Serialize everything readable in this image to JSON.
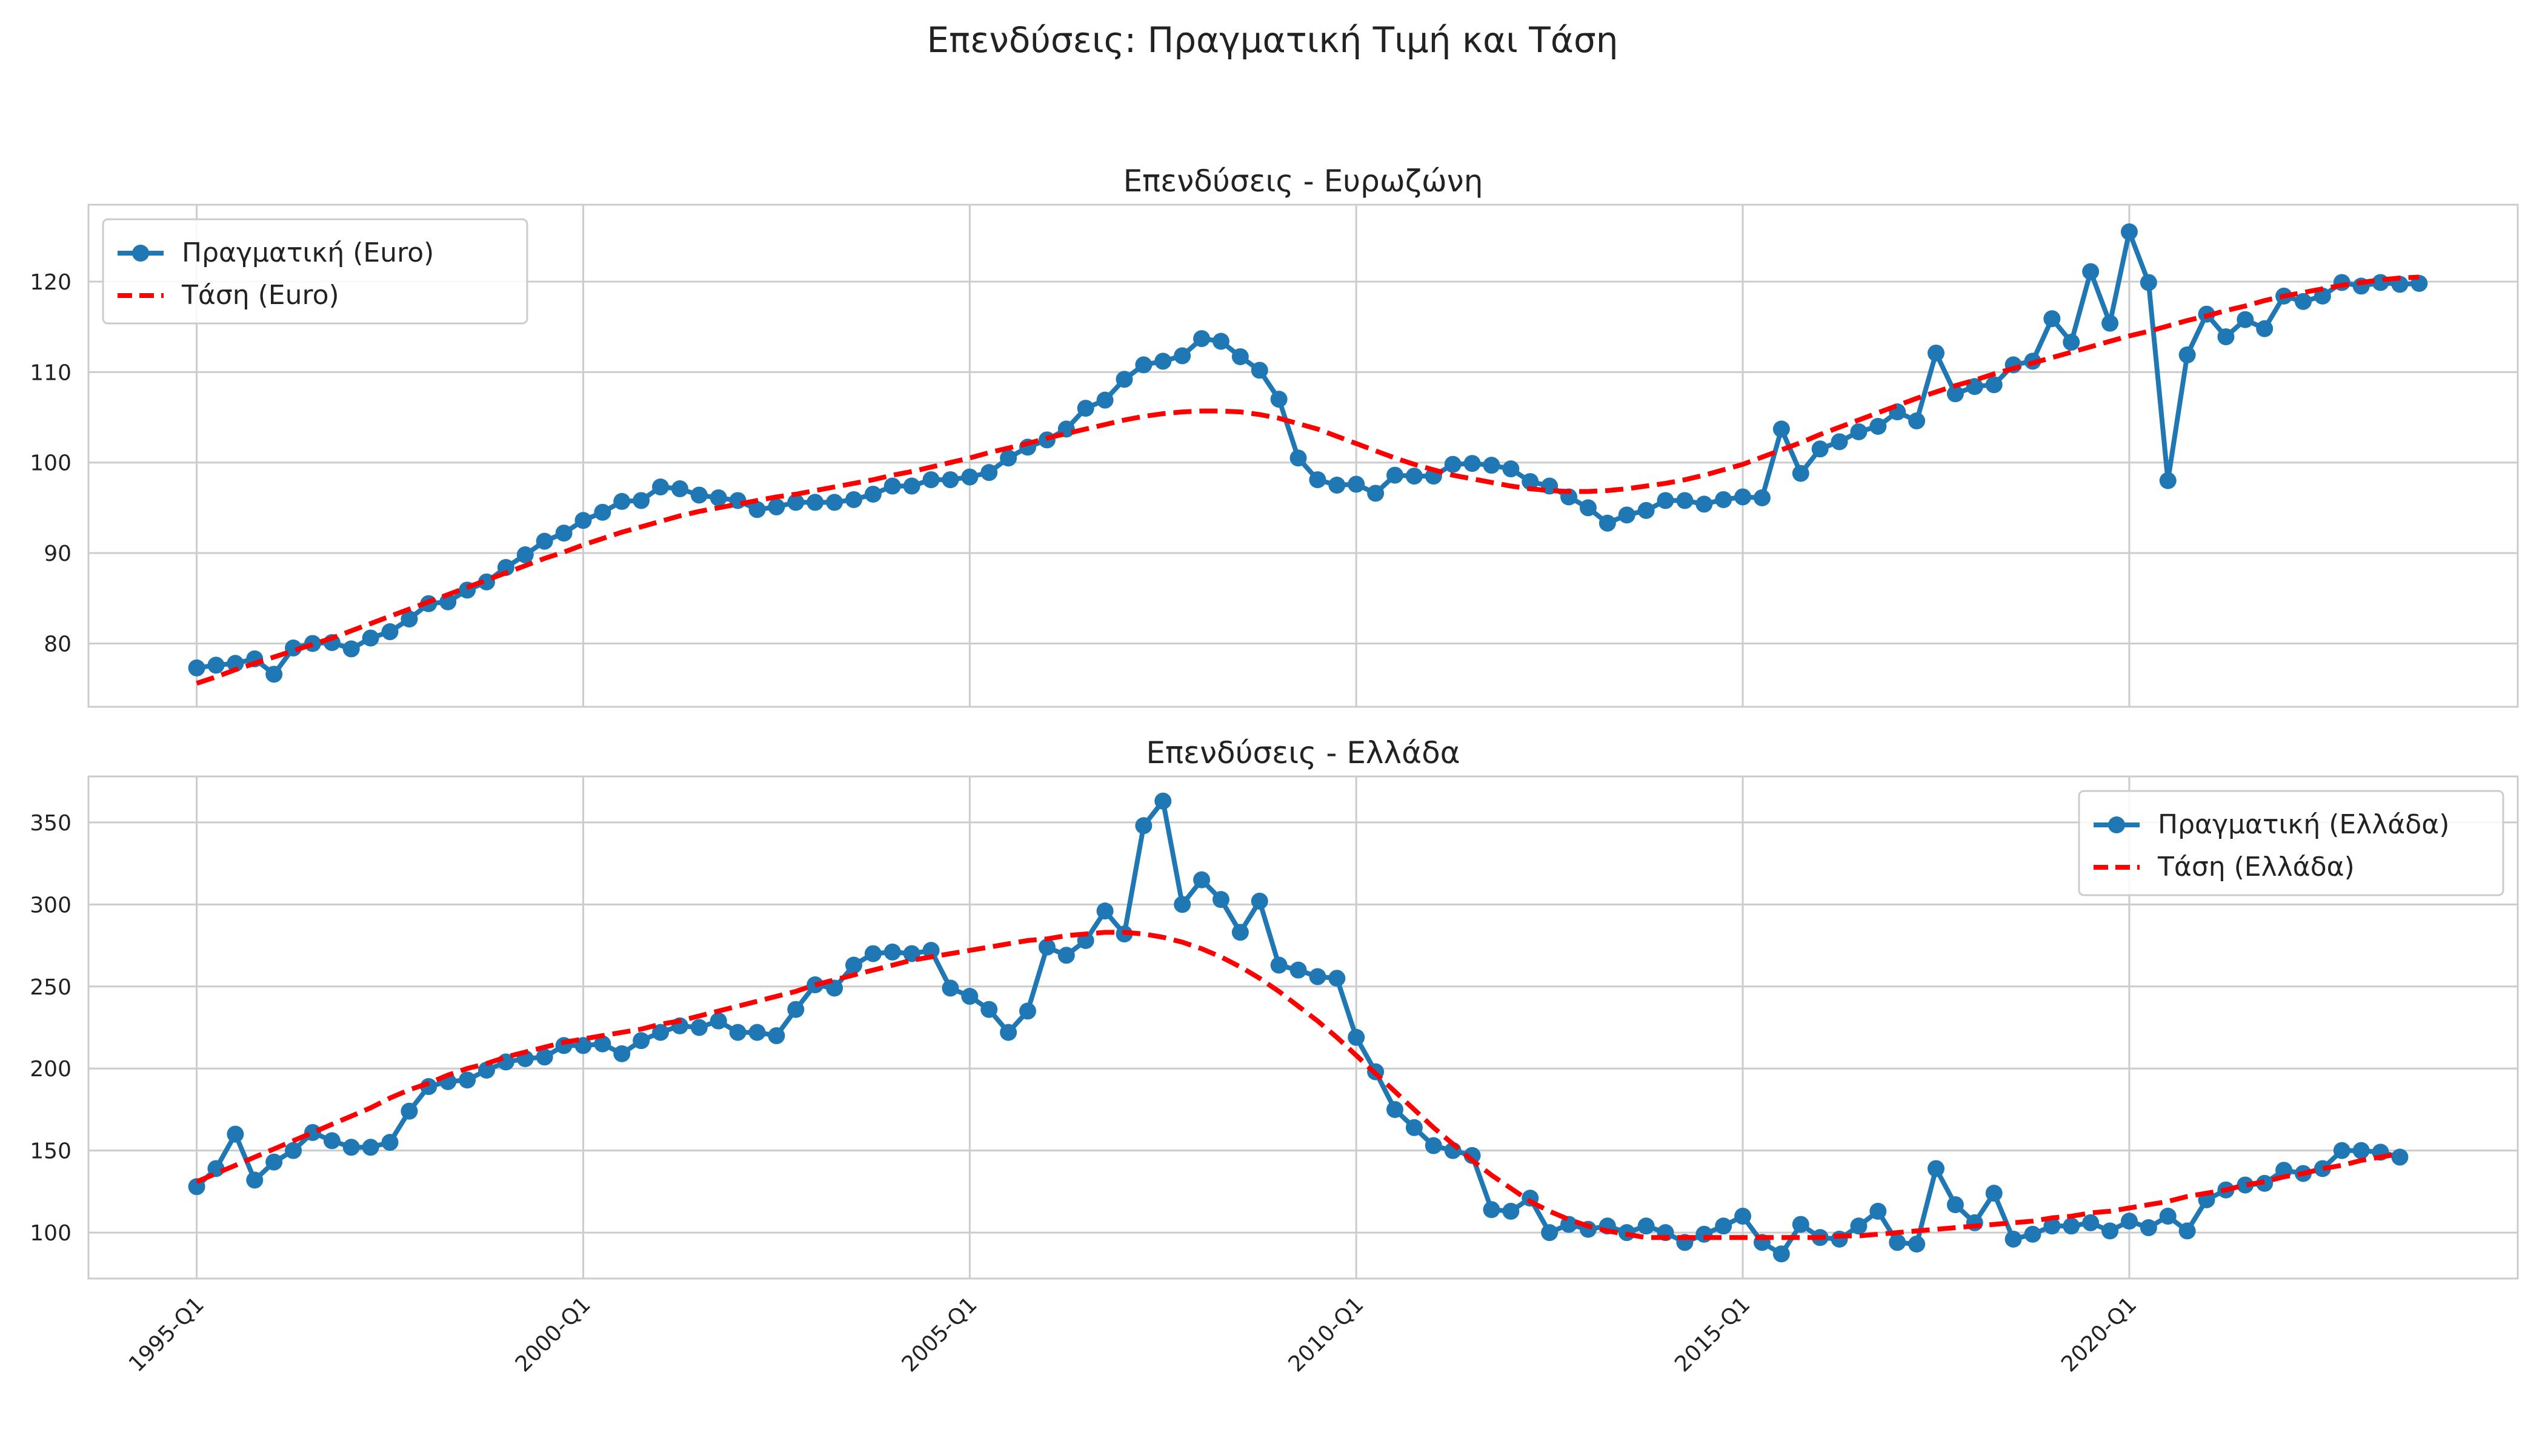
{
  "figure": {
    "title": "Επενδύσεις: Πραγματική Τιμή και Τάση"
  },
  "colors": {
    "actual": "#1f77b4",
    "trend": "#ff0000",
    "grid": "#cccccc",
    "frame": "#cccccc"
  },
  "chart_data": [
    {
      "type": "line",
      "title": "Επενδύσεις - Ευρωζώνη",
      "xlabel": "",
      "ylabel": "",
      "x_range": [
        "1995-Q1",
        "2023-Q3"
      ],
      "xlim_index": [
        -5.6,
        120.1
      ],
      "ylim": [
        73,
        128.5
      ],
      "yticks": [
        80,
        90,
        100,
        110,
        120
      ],
      "xticks": [
        "1995-Q1",
        "2000-Q1",
        "2005-Q1",
        "2010-Q1",
        "2015-Q1",
        "2020-Q1"
      ],
      "grid": true,
      "legend": "top-left",
      "series": [
        {
          "name": "Πραγματική (Euro)",
          "style": "solid-markers",
          "values": [
            77.3,
            77.6,
            77.8,
            78.3,
            76.6,
            79.5,
            80,
            80.1,
            79.4,
            80.6,
            81.3,
            82.7,
            84.4,
            84.6,
            85.9,
            86.8,
            88.4,
            89.8,
            91.3,
            92.2,
            93.6,
            94.5,
            95.7,
            95.8,
            97.3,
            97.1,
            96.4,
            96.1,
            95.8,
            94.8,
            95.1,
            95.6,
            95.6,
            95.6,
            95.9,
            96.5,
            97.4,
            97.4,
            98.1,
            98.1,
            98.4,
            98.9,
            100.5,
            101.7,
            102.5,
            103.7,
            106,
            106.9,
            109.2,
            110.8,
            111.2,
            111.8,
            113.7,
            113.4,
            111.7,
            110.2,
            107,
            100.5,
            98.1,
            97.5,
            97.6,
            96.6,
            98.6,
            98.5,
            98.5,
            99.8,
            99.9,
            99.7,
            99.3,
            97.9,
            97.4,
            96.2,
            95,
            93.3,
            94.2,
            94.7,
            95.8,
            95.8,
            95.4,
            95.9,
            96.2,
            96.1,
            103.7,
            98.8,
            101.5,
            102.3,
            103.4,
            104,
            105.6,
            104.6,
            112.1,
            107.6,
            108.4,
            108.6,
            110.8,
            111.2,
            115.9,
            113.3,
            121.1,
            115.4,
            125.5,
            119.9,
            98,
            111.9,
            116.4,
            113.9,
            115.8,
            114.8,
            118.4,
            117.8,
            118.4,
            119.9,
            119.5,
            119.9,
            119.7,
            119.8
          ]
        },
        {
          "name": "Τάση (Euro)",
          "style": "dashed",
          "values": [
            75.6,
            76.3,
            77.1,
            77.8,
            78.5,
            79.2,
            79.9,
            80.6,
            81.4,
            82.2,
            83,
            83.8,
            84.6,
            85.4,
            86.2,
            87,
            87.8,
            88.6,
            89.4,
            90.1,
            90.9,
            91.6,
            92.3,
            92.9,
            93.5,
            94.1,
            94.6,
            95,
            95.4,
            95.8,
            96.2,
            96.5,
            96.9,
            97.3,
            97.7,
            98.1,
            98.6,
            99,
            99.5,
            100,
            100.5,
            101.1,
            101.6,
            102.1,
            102.7,
            103.2,
            103.7,
            104.2,
            104.7,
            105.1,
            105.4,
            105.6,
            105.7,
            105.7,
            105.6,
            105.3,
            104.9,
            104.3,
            103.7,
            102.9,
            102.1,
            101.3,
            100.5,
            99.8,
            99.2,
            98.6,
            98.2,
            97.8,
            97.4,
            97.1,
            96.9,
            96.8,
            96.8,
            96.9,
            97.1,
            97.4,
            97.7,
            98.1,
            98.6,
            99.2,
            99.8,
            100.6,
            101.4,
            102.2,
            103.1,
            103.9,
            104.7,
            105.5,
            106.3,
            107.1,
            107.8,
            108.5,
            109.1,
            109.8,
            110.4,
            111,
            111.6,
            112.2,
            112.8,
            113.4,
            114,
            114.5,
            115.1,
            115.7,
            116.2,
            116.8,
            117.3,
            117.9,
            118.4,
            118.8,
            119.2,
            119.6,
            119.9,
            120.2,
            120.4,
            120.5
          ]
        }
      ]
    },
    {
      "type": "line",
      "title": "Επενδύσεις - Ελλάδα",
      "xlabel": "",
      "ylabel": "",
      "x_range": [
        "1995-Q1",
        "2023-Q3"
      ],
      "xlim_index": [
        -5.6,
        120.1
      ],
      "ylim": [
        72,
        378
      ],
      "yticks": [
        100,
        150,
        200,
        250,
        300,
        350
      ],
      "xticks": [
        "1995-Q1",
        "2000-Q1",
        "2005-Q1",
        "2010-Q1",
        "2015-Q1",
        "2020-Q1"
      ],
      "grid": true,
      "legend": "top-right",
      "series": [
        {
          "name": "Πραγματική (Ελλάδα)",
          "style": "solid-markers",
          "values": [
            128,
            139,
            160,
            132,
            143,
            150,
            161,
            156,
            152,
            152,
            155,
            174,
            189,
            192,
            193,
            199,
            204,
            206,
            207,
            214,
            214,
            215,
            209,
            217,
            222,
            226,
            225,
            229,
            222,
            222,
            220,
            236,
            251,
            249,
            263,
            270,
            271,
            270,
            272,
            249,
            244,
            236,
            222,
            235,
            274,
            269,
            278,
            296,
            282,
            348,
            363,
            300,
            315,
            303,
            283,
            302,
            263,
            260,
            256,
            255,
            219,
            198,
            175,
            164,
            153,
            150,
            147,
            114,
            113,
            121,
            100,
            105,
            102,
            104,
            100,
            104,
            100,
            94,
            99,
            104,
            110,
            94,
            87,
            105,
            97,
            96,
            104,
            113,
            94,
            93,
            139,
            117,
            106,
            124,
            96,
            99,
            104,
            104,
            106,
            101,
            107,
            103,
            110,
            101,
            120,
            126,
            129,
            130,
            138,
            136,
            139,
            150,
            150,
            149,
            146
          ]
        },
        {
          "name": "Τάση (Ελλάδα)",
          "style": "dashed",
          "values": [
            131,
            136,
            141,
            146,
            151,
            156,
            161,
            166,
            171,
            176,
            182,
            187,
            191,
            196,
            200,
            203,
            207,
            210,
            213,
            216,
            218,
            220,
            222,
            224,
            227,
            229,
            232,
            235,
            238,
            241,
            244,
            247,
            251,
            254,
            257,
            260,
            263,
            266,
            268,
            270,
            272,
            274,
            276,
            278,
            279,
            281,
            282,
            283,
            283,
            282,
            280,
            277,
            273,
            268,
            262,
            255,
            247,
            238,
            229,
            219,
            208,
            197,
            186,
            175,
            164,
            154,
            144,
            135,
            127,
            119,
            113,
            108,
            104,
            101,
            99,
            97,
            97,
            97,
            97,
            97,
            97,
            97,
            97,
            97,
            97,
            98,
            98,
            99,
            100,
            101,
            102,
            103,
            104,
            105,
            106,
            107,
            109,
            110,
            112,
            113,
            115,
            117,
            119,
            122,
            124,
            126,
            129,
            131,
            134,
            136,
            139,
            141,
            144,
            146,
            148
          ]
        }
      ]
    }
  ]
}
